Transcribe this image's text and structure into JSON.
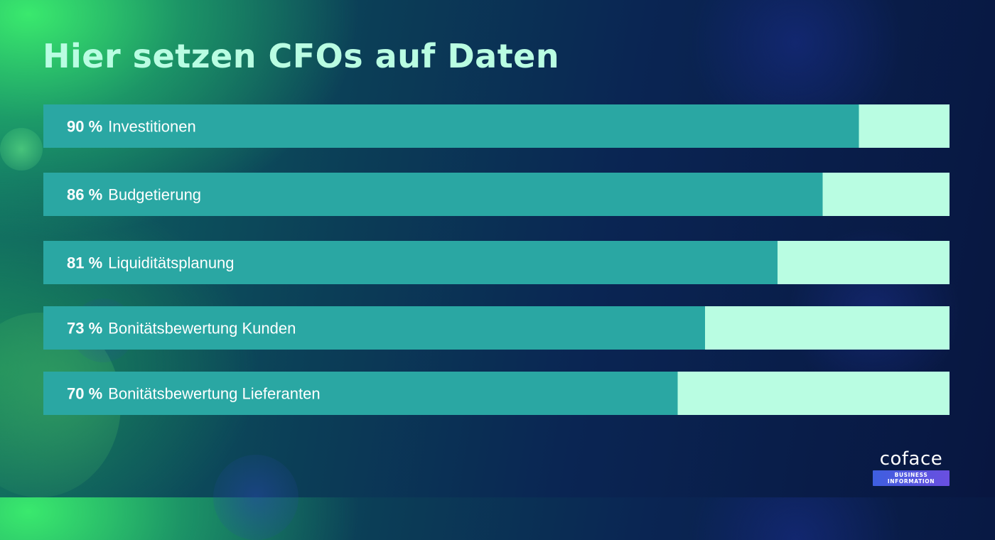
{
  "title": "Hier setzen CFOs auf Daten",
  "colors": {
    "bar_fill": "#2aa7a3",
    "bar_track": "#b9fde2",
    "title": "#b9fde2",
    "label": "#ffffff"
  },
  "chart_data": {
    "type": "bar",
    "orientation": "horizontal",
    "title": "Hier setzen CFOs auf Daten",
    "categories": [
      "Investitionen",
      "Budgetierung",
      "Liquiditätsplanung",
      "Bonitätsbewertung Kunden",
      "Bonitätsbewertung Lieferanten"
    ],
    "values": [
      90,
      86,
      81,
      73,
      70
    ],
    "value_labels": [
      "90 %",
      "86 %",
      "81 %",
      "73 %",
      "70 %"
    ],
    "xlim": [
      0,
      100
    ],
    "grid": false,
    "legend": "none"
  },
  "logo": {
    "wordmark": "coface",
    "tagline": "BUSINESS INFORMATION"
  }
}
